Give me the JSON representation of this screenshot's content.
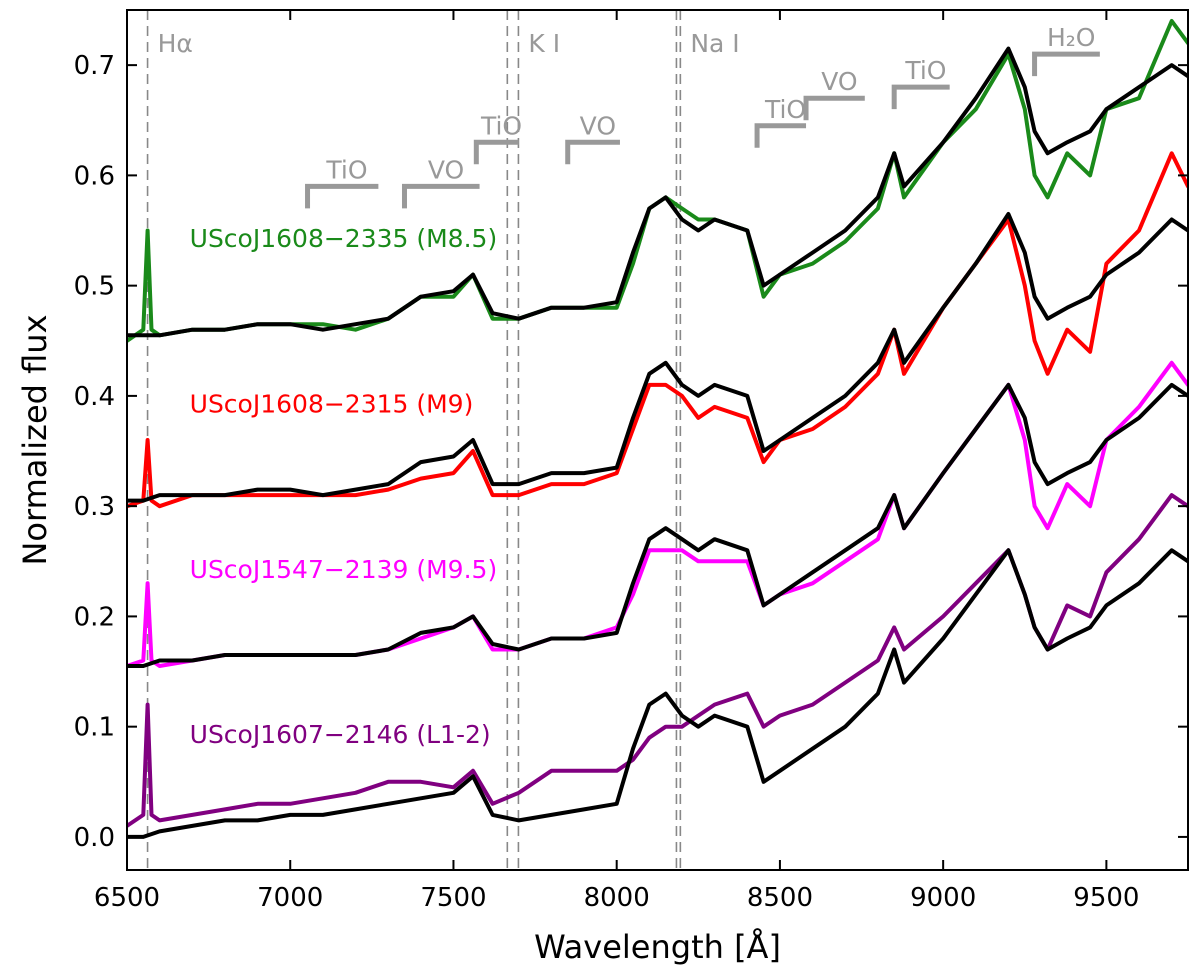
{
  "chart_data": {
    "type": "line",
    "title": "",
    "xlabel": "Wavelength [Å]",
    "ylabel": "Normalized flux",
    "xlim": [
      6500,
      9750
    ],
    "ylim": [
      -0.03,
      0.75
    ],
    "xticks": [
      6500,
      7000,
      7500,
      8000,
      8500,
      9000,
      9500
    ],
    "yticks": [
      0.0,
      0.1,
      0.2,
      0.3,
      0.4,
      0.5,
      0.6,
      0.7
    ],
    "grid": false,
    "legend": "inline labels (left)",
    "line_markers": [
      {
        "label": "Hα",
        "wavelengths": [
          6563
        ]
      },
      {
        "label": "K I",
        "wavelengths": [
          7665,
          7699
        ]
      },
      {
        "label": "Na I",
        "wavelengths": [
          8183,
          8195
        ]
      }
    ],
    "band_brackets": [
      {
        "label": "TiO",
        "start": 7053,
        "end": 7270,
        "y": 0.59
      },
      {
        "label": "VO",
        "start": 7350,
        "end": 7580,
        "y": 0.59
      },
      {
        "label": "TiO",
        "start": 7570,
        "end": 7700,
        "y": 0.63
      },
      {
        "label": "VO",
        "start": 7850,
        "end": 8010,
        "y": 0.63
      },
      {
        "label": "TiO",
        "start": 8430,
        "end": 8580,
        "y": 0.645
      },
      {
        "label": "VO",
        "start": 8580,
        "end": 8760,
        "y": 0.67
      },
      {
        "label": "TiO",
        "start": 8850,
        "end": 9020,
        "y": 0.68
      },
      {
        "label": "H₂O",
        "start": 9280,
        "end": 9480,
        "y": 0.71
      }
    ],
    "series": [
      {
        "name": "UScoJ1608−2335 (M8.5)",
        "color": "#1a8a1a",
        "x": [
          6500,
          6550,
          6563,
          6575,
          6600,
          6700,
          6800,
          6900,
          7000,
          7100,
          7200,
          7300,
          7400,
          7500,
          7560,
          7620,
          7700,
          7800,
          7900,
          8000,
          8050,
          8100,
          8150,
          8200,
          8250,
          8300,
          8400,
          8450,
          8500,
          8600,
          8700,
          8800,
          8850,
          8880,
          9000,
          9100,
          9200,
          9250,
          9280,
          9320,
          9380,
          9450,
          9500,
          9600,
          9700,
          9750
        ],
        "y": [
          0.45,
          0.46,
          0.55,
          0.46,
          0.455,
          0.46,
          0.46,
          0.465,
          0.465,
          0.465,
          0.46,
          0.47,
          0.49,
          0.49,
          0.51,
          0.47,
          0.47,
          0.48,
          0.48,
          0.48,
          0.52,
          0.57,
          0.58,
          0.57,
          0.56,
          0.56,
          0.55,
          0.49,
          0.51,
          0.52,
          0.54,
          0.57,
          0.62,
          0.58,
          0.63,
          0.66,
          0.71,
          0.66,
          0.6,
          0.58,
          0.62,
          0.6,
          0.66,
          0.67,
          0.74,
          0.72
        ]
      },
      {
        "name": "UScoJ1608−2315 (M9)",
        "color": "#ff0000",
        "x": [
          6500,
          6550,
          6563,
          6575,
          6600,
          6700,
          6800,
          6900,
          7000,
          7100,
          7200,
          7300,
          7400,
          7500,
          7560,
          7620,
          7700,
          7800,
          7900,
          8000,
          8050,
          8100,
          8150,
          8200,
          8250,
          8300,
          8400,
          8450,
          8500,
          8600,
          8700,
          8800,
          8850,
          8880,
          9000,
          9100,
          9200,
          9250,
          9280,
          9320,
          9380,
          9450,
          9500,
          9600,
          9700,
          9750
        ],
        "y": [
          0.3,
          0.305,
          0.36,
          0.305,
          0.3,
          0.31,
          0.31,
          0.31,
          0.31,
          0.31,
          0.31,
          0.315,
          0.325,
          0.33,
          0.35,
          0.31,
          0.31,
          0.32,
          0.32,
          0.33,
          0.37,
          0.41,
          0.41,
          0.4,
          0.38,
          0.39,
          0.38,
          0.34,
          0.36,
          0.37,
          0.39,
          0.42,
          0.46,
          0.42,
          0.48,
          0.52,
          0.56,
          0.5,
          0.45,
          0.42,
          0.46,
          0.44,
          0.52,
          0.55,
          0.62,
          0.59
        ]
      },
      {
        "name": "UScoJ1547−2139 (M9.5)",
        "color": "#ff00ff",
        "x": [
          6500,
          6550,
          6563,
          6575,
          6600,
          6700,
          6800,
          6900,
          7000,
          7100,
          7200,
          7300,
          7400,
          7500,
          7560,
          7620,
          7700,
          7800,
          7900,
          8000,
          8050,
          8100,
          8150,
          8200,
          8250,
          8300,
          8400,
          8450,
          8500,
          8600,
          8700,
          8800,
          8850,
          8880,
          9000,
          9100,
          9200,
          9250,
          9280,
          9320,
          9380,
          9450,
          9500,
          9600,
          9700,
          9750
        ],
        "y": [
          0.155,
          0.16,
          0.23,
          0.16,
          0.155,
          0.16,
          0.165,
          0.165,
          0.165,
          0.165,
          0.165,
          0.17,
          0.18,
          0.19,
          0.2,
          0.17,
          0.17,
          0.18,
          0.18,
          0.19,
          0.22,
          0.26,
          0.26,
          0.26,
          0.25,
          0.25,
          0.25,
          0.21,
          0.22,
          0.23,
          0.25,
          0.27,
          0.31,
          0.28,
          0.33,
          0.37,
          0.41,
          0.36,
          0.3,
          0.28,
          0.32,
          0.3,
          0.36,
          0.39,
          0.43,
          0.41
        ]
      },
      {
        "name": "UScoJ1607−2146 (L1-2)",
        "color": "#800080",
        "x": [
          6500,
          6550,
          6563,
          6575,
          6600,
          6700,
          6800,
          6900,
          7000,
          7100,
          7200,
          7300,
          7400,
          7500,
          7560,
          7620,
          7700,
          7800,
          7900,
          8000,
          8050,
          8100,
          8150,
          8200,
          8250,
          8300,
          8400,
          8450,
          8500,
          8600,
          8700,
          8800,
          8850,
          8880,
          9000,
          9100,
          9200,
          9250,
          9280,
          9320,
          9380,
          9450,
          9500,
          9600,
          9700,
          9750
        ],
        "y": [
          0.01,
          0.02,
          0.12,
          0.02,
          0.015,
          0.02,
          0.025,
          0.03,
          0.03,
          0.035,
          0.04,
          0.05,
          0.05,
          0.045,
          0.06,
          0.03,
          0.04,
          0.06,
          0.06,
          0.06,
          0.07,
          0.09,
          0.1,
          0.1,
          0.11,
          0.12,
          0.13,
          0.1,
          0.11,
          0.12,
          0.14,
          0.16,
          0.19,
          0.17,
          0.2,
          0.23,
          0.26,
          0.22,
          0.19,
          0.17,
          0.21,
          0.2,
          0.24,
          0.27,
          0.31,
          0.3
        ]
      },
      {
        "name": "",
        "color": "#000000",
        "x": [
          6500,
          6550,
          6600,
          6700,
          6800,
          6900,
          7000,
          7100,
          7200,
          7300,
          7400,
          7500,
          7560,
          7620,
          7700,
          7800,
          7900,
          8000,
          8050,
          8100,
          8150,
          8200,
          8250,
          8300,
          8400,
          8450,
          8500,
          8600,
          8700,
          8800,
          8850,
          8880,
          9000,
          9100,
          9200,
          9250,
          9280,
          9320,
          9380,
          9450,
          9500,
          9600,
          9700,
          9750
        ],
        "y": [
          0.455,
          0.455,
          0.455,
          0.46,
          0.46,
          0.465,
          0.465,
          0.46,
          0.465,
          0.47,
          0.49,
          0.495,
          0.51,
          0.475,
          0.47,
          0.48,
          0.48,
          0.485,
          0.53,
          0.57,
          0.58,
          0.56,
          0.55,
          0.56,
          0.55,
          0.5,
          0.51,
          0.53,
          0.55,
          0.58,
          0.62,
          0.59,
          0.63,
          0.67,
          0.715,
          0.68,
          0.64,
          0.62,
          0.63,
          0.64,
          0.66,
          0.68,
          0.7,
          0.69
        ]
      },
      {
        "name": "",
        "color": "#000000",
        "x": [
          6500,
          6550,
          6600,
          6700,
          6800,
          6900,
          7000,
          7100,
          7200,
          7300,
          7400,
          7500,
          7560,
          7620,
          7700,
          7800,
          7900,
          8000,
          8050,
          8100,
          8150,
          8200,
          8250,
          8300,
          8400,
          8450,
          8500,
          8600,
          8700,
          8800,
          8850,
          8880,
          9000,
          9100,
          9200,
          9250,
          9280,
          9320,
          9380,
          9450,
          9500,
          9600,
          9700,
          9750
        ],
        "y": [
          0.305,
          0.305,
          0.31,
          0.31,
          0.31,
          0.315,
          0.315,
          0.31,
          0.315,
          0.32,
          0.34,
          0.345,
          0.36,
          0.32,
          0.32,
          0.33,
          0.33,
          0.335,
          0.38,
          0.42,
          0.43,
          0.41,
          0.4,
          0.41,
          0.4,
          0.35,
          0.36,
          0.38,
          0.4,
          0.43,
          0.46,
          0.43,
          0.48,
          0.52,
          0.565,
          0.53,
          0.49,
          0.47,
          0.48,
          0.49,
          0.51,
          0.53,
          0.56,
          0.55
        ]
      },
      {
        "name": "",
        "color": "#000000",
        "x": [
          6500,
          6550,
          6600,
          6700,
          6800,
          6900,
          7000,
          7100,
          7200,
          7300,
          7400,
          7500,
          7560,
          7620,
          7700,
          7800,
          7900,
          8000,
          8050,
          8100,
          8150,
          8200,
          8250,
          8300,
          8400,
          8450,
          8500,
          8600,
          8700,
          8800,
          8850,
          8880,
          9000,
          9100,
          9200,
          9250,
          9280,
          9320,
          9380,
          9450,
          9500,
          9600,
          9700,
          9750
        ],
        "y": [
          0.155,
          0.155,
          0.16,
          0.16,
          0.165,
          0.165,
          0.165,
          0.165,
          0.165,
          0.17,
          0.185,
          0.19,
          0.2,
          0.175,
          0.17,
          0.18,
          0.18,
          0.185,
          0.23,
          0.27,
          0.28,
          0.27,
          0.26,
          0.27,
          0.26,
          0.21,
          0.22,
          0.24,
          0.26,
          0.28,
          0.31,
          0.28,
          0.33,
          0.37,
          0.41,
          0.38,
          0.34,
          0.32,
          0.33,
          0.34,
          0.36,
          0.38,
          0.41,
          0.4
        ]
      },
      {
        "name": "",
        "color": "#000000",
        "x": [
          6500,
          6550,
          6600,
          6700,
          6800,
          6900,
          7000,
          7100,
          7200,
          7300,
          7400,
          7500,
          7560,
          7620,
          7700,
          7800,
          7900,
          8000,
          8050,
          8100,
          8150,
          8200,
          8250,
          8300,
          8400,
          8450,
          8500,
          8600,
          8700,
          8800,
          8850,
          8880,
          9000,
          9100,
          9200,
          9250,
          9280,
          9320,
          9380,
          9450,
          9500,
          9600,
          9700,
          9750
        ],
        "y": [
          0.0,
          0.0,
          0.005,
          0.01,
          0.015,
          0.015,
          0.02,
          0.02,
          0.025,
          0.03,
          0.035,
          0.04,
          0.055,
          0.02,
          0.015,
          0.02,
          0.025,
          0.03,
          0.08,
          0.12,
          0.13,
          0.11,
          0.1,
          0.11,
          0.1,
          0.05,
          0.06,
          0.08,
          0.1,
          0.13,
          0.17,
          0.14,
          0.18,
          0.22,
          0.26,
          0.22,
          0.19,
          0.17,
          0.18,
          0.19,
          0.21,
          0.23,
          0.26,
          0.25
        ]
      }
    ],
    "star_labels": [
      {
        "text": "UScoJ1608−2335 (M8.5)",
        "color": "#1a8a1a",
        "x": 6600,
        "y": 0.535
      },
      {
        "text": "UScoJ1608−2315 (M9)",
        "color": "#ff0000",
        "x": 6600,
        "y": 0.385
      },
      {
        "text": "UScoJ1547−2139 (M9.5)",
        "color": "#ff00ff",
        "x": 6600,
        "y": 0.235
      },
      {
        "text": "UScoJ1607−2146 (L1-2)",
        "color": "#800080",
        "x": 6600,
        "y": 0.085
      }
    ]
  }
}
